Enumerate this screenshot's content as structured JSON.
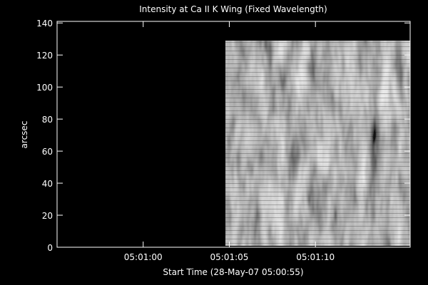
{
  "chart_data": {
    "type": "image",
    "title": "Intensity at Ca II K Wing (Fixed Wavelength)",
    "x_label": "Start Time (28-May-07 05:00:55)",
    "y_label": "arcsec",
    "xlim": [
      0,
      20.5
    ],
    "xticks": [
      {
        "value": 5,
        "label": "05:01:00"
      },
      {
        "value": 10,
        "label": "05:01:05"
      },
      {
        "value": 15,
        "label": "05:01:10"
      }
    ],
    "ylim": [
      0,
      141
    ],
    "yticks": [
      0,
      20,
      40,
      60,
      80,
      100,
      120,
      140
    ],
    "grid": false
  }
}
